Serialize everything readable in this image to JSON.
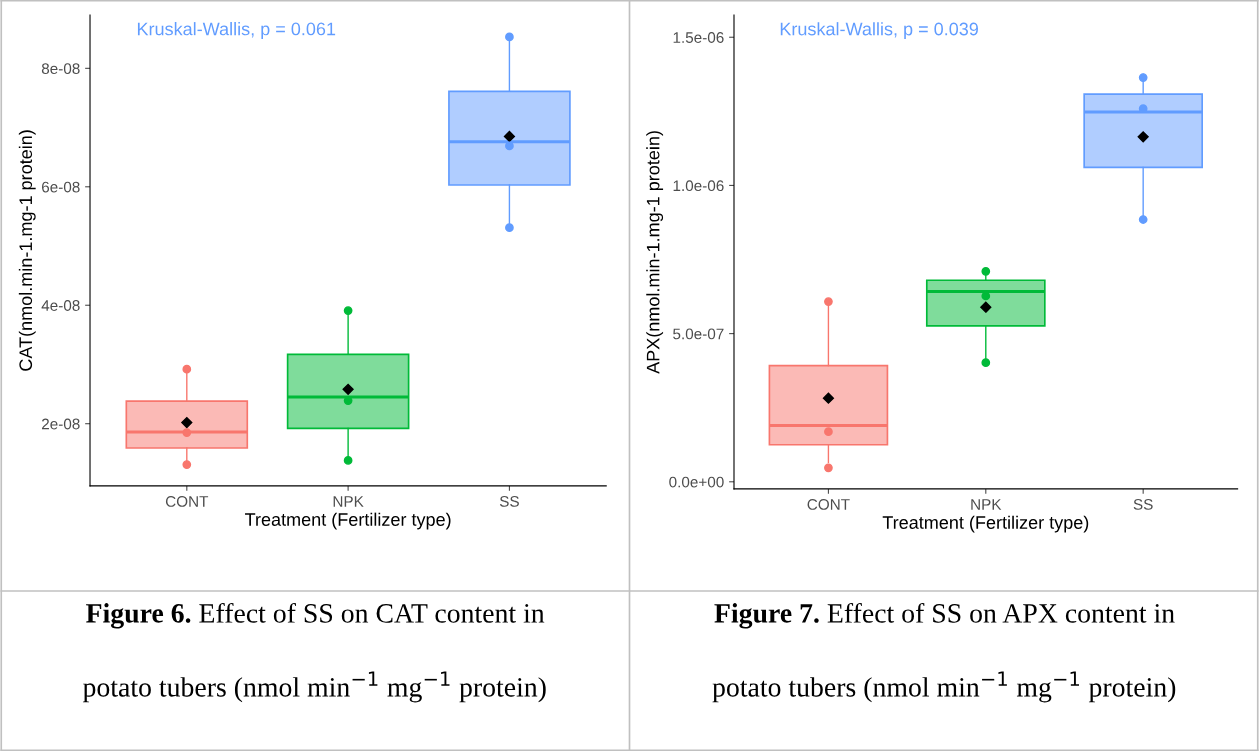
{
  "chart_data": [
    {
      "type": "box",
      "xlabel": "Treatment (Fertilizer type)",
      "ylabel": "CAT(nmol.min-1.mg-1 protein)",
      "categories": [
        "CONT",
        "NPK",
        "SS"
      ],
      "colors": [
        "#f8766d",
        "#00ba38",
        "#619cff"
      ],
      "boxes": [
        {
          "low": 1.35e-08,
          "q1": 1.59e-08,
          "median": 1.86e-08,
          "q3": 2.38e-08,
          "high": 2.92e-08,
          "mean": 2.02e-08
        },
        {
          "low": 1.38e-08,
          "q1": 1.92e-08,
          "median": 2.45e-08,
          "q3": 3.17e-08,
          "high": 3.91e-08,
          "mean": 2.58e-08
        },
        {
          "low": 5.33e-08,
          "q1": 6.03e-08,
          "median": 6.76e-08,
          "q3": 7.61e-08,
          "high": 8.51e-08,
          "mean": 6.85e-08
        }
      ],
      "series": [
        {
          "type": "scatter",
          "x": [
            "CONT",
            "CONT",
            "CONT",
            "NPK",
            "NPK",
            "NPK",
            "SS",
            "SS",
            "SS"
          ],
          "values": [
            2.92e-08,
            1.85e-08,
            1.31e-08,
            3.91e-08,
            2.39e-08,
            1.38e-08,
            8.53e-08,
            6.69e-08,
            5.31e-08
          ],
          "colors": [
            "#f8766d",
            "#f8766d",
            "#f8766d",
            "#00ba38",
            "#00ba38",
            "#00ba38",
            "#619cff",
            "#619cff",
            "#619cff"
          ]
        }
      ],
      "ylim": [
        9.5e-09,
        8.9e-08
      ],
      "yticks": [
        {
          "value": 2e-08,
          "label": "2e-08"
        },
        {
          "value": 4e-08,
          "label": "4e-08"
        },
        {
          "value": 6e-08,
          "label": "6e-08"
        },
        {
          "value": 8e-08,
          "label": "8e-08"
        }
      ],
      "grid": false,
      "legend": false,
      "annotations": [
        "Kruskal-Wallis, p = 0.061",
        "Figure 6.",
        "Effect of SS on CAT content in",
        "potato tubers (nmol min$^{−1}$ mg$^{−1}$ protein)"
      ]
    },
    {
      "type": "box",
      "xlabel": "Treatment (Fertilizer type)",
      "ylabel": "APX(nmol.min-1.mg-1 protein)",
      "categories": [
        "CONT",
        "NPK",
        "SS"
      ],
      "colors": [
        "#f8766d",
        "#00ba38",
        "#619cff"
      ],
      "boxes": [
        {
          "low": 6.5e-08,
          "q1": 1.25e-07,
          "median": 1.9e-07,
          "q3": 3.92e-07,
          "high": 6.03e-07,
          "mean": 2.82e-07
        },
        {
          "low": 4.17e-07,
          "q1": 5.26e-07,
          "median": 6.42e-07,
          "q3": 6.8e-07,
          "high": 7.17e-07,
          "mean": 5.89e-07
        },
        {
          "low": 8.79e-07,
          "q1": 1.061e-06,
          "median": 1.248e-06,
          "q3": 1.308e-06,
          "high": 1.375e-06,
          "mean": 1.164e-06
        }
      ],
      "series": [
        {
          "type": "scatter",
          "x": [
            "CONT",
            "CONT",
            "CONT",
            "NPK",
            "NPK",
            "NPK",
            "SS",
            "SS",
            "SS"
          ],
          "values": [
            6.08e-07,
            1.69e-07,
            4.7e-08,
            7.1e-07,
            6.27e-07,
            4.02e-07,
            1.364e-06,
            1.259e-06,
            8.85e-07
          ],
          "colors": [
            "#f8766d",
            "#f8766d",
            "#f8766d",
            "#00ba38",
            "#00ba38",
            "#00ba38",
            "#619cff",
            "#619cff",
            "#619cff"
          ]
        }
      ],
      "ylim": [
        -2.4e-08,
        1.575e-06
      ],
      "yticks": [
        {
          "value": 0,
          "label": "0.0e+00"
        },
        {
          "value": 5e-07,
          "label": "5.0e-07"
        },
        {
          "value": 1e-06,
          "label": "1.0e-06"
        },
        {
          "value": 1.5e-06,
          "label": "1.5e-06"
        }
      ],
      "grid": false,
      "legend": false,
      "annotations": [
        "Kruskal-Wallis, p = 0.039",
        "Figure 7.",
        "Effect of SS on APX content in",
        "potato tubers (nmol min$^{−1}$ mg$^{−1}$ protein)"
      ]
    }
  ]
}
